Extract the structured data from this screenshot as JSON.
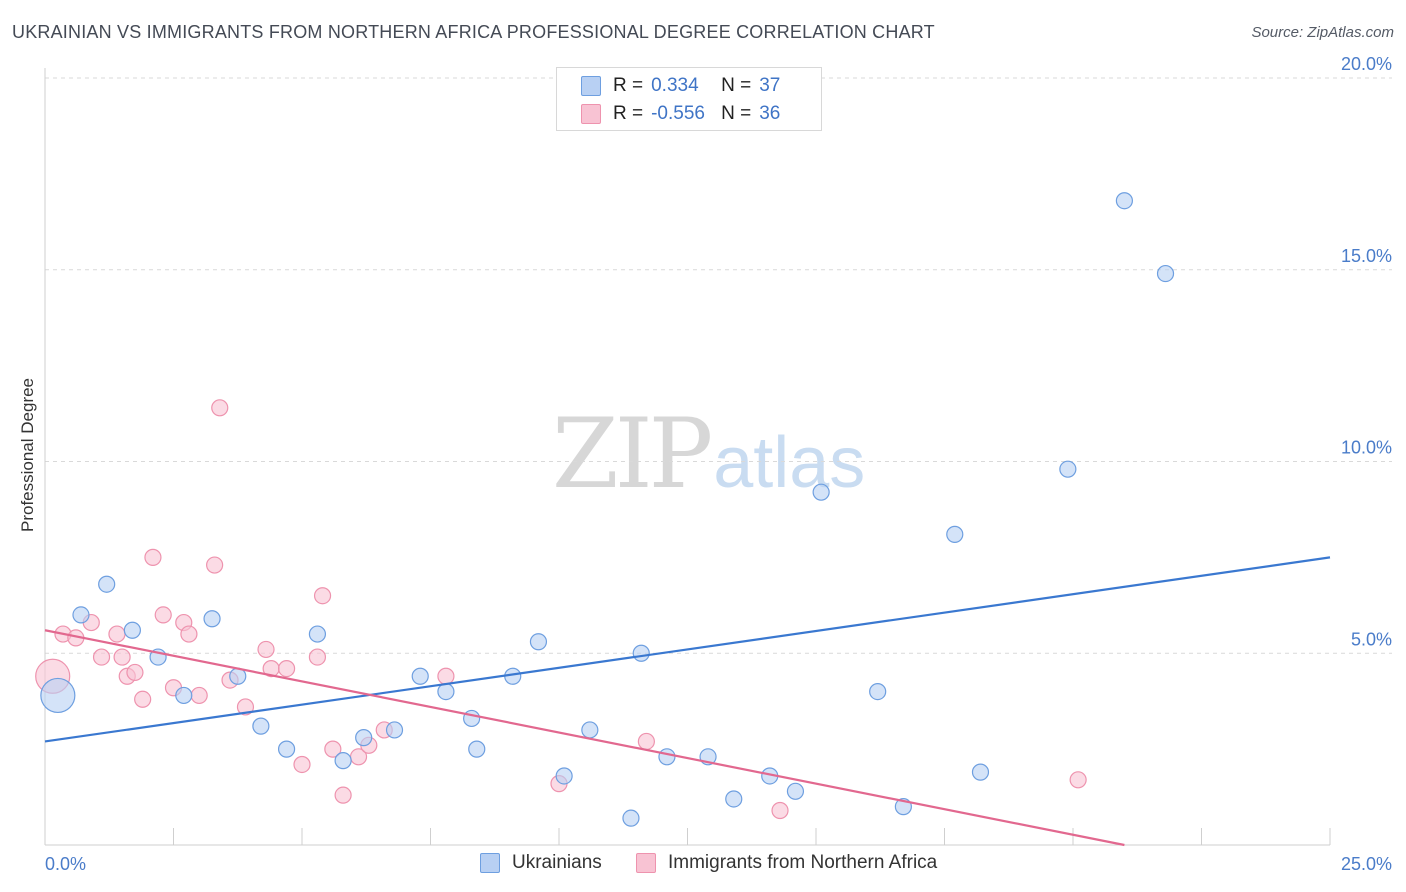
{
  "title": "UKRAINIAN VS IMMIGRANTS FROM NORTHERN AFRICA PROFESSIONAL DEGREE CORRELATION CHART",
  "source": "Source: ZipAtlas.com",
  "watermark": {
    "zip": "ZIP",
    "atlas": "atlas"
  },
  "legend": {
    "series1": {
      "r_label": "R =",
      "r_value": "0.334",
      "n_label": "N =",
      "n_value": "37"
    },
    "series2": {
      "r_label": "R =",
      "r_value": "-0.556",
      "n_label": "N =",
      "n_value": "36"
    }
  },
  "bottom_legend": {
    "series1": "Ukrainians",
    "series2": "Immigrants from Northern Africa"
  },
  "colors": {
    "blue_fill": "#b8d0f3",
    "blue_stroke": "#6e9fe0",
    "blue_line": "#3a78d0",
    "pink_fill": "#f8c3d3",
    "pink_stroke": "#ee93ae",
    "pink_line": "#e2688f",
    "tick_text": "#4a7cc9",
    "grid": "#d9d9d9"
  },
  "chart_data": {
    "type": "scatter",
    "title": "UKRAINIAN VS IMMIGRANTS FROM NORTHERN AFRICA PROFESSIONAL DEGREE CORRELATION CHART",
    "xlabel": "",
    "ylabel": "Professional Degree",
    "xlim": [
      0,
      25
    ],
    "ylim": [
      0,
      20
    ],
    "x_ticks": [
      "0.0%",
      "25.0%"
    ],
    "y_ticks": [
      {
        "value": 5,
        "label": "5.0%"
      },
      {
        "value": 10,
        "label": "10.0%"
      },
      {
        "value": 15,
        "label": "15.0%"
      },
      {
        "value": 20,
        "label": "20.0%"
      }
    ],
    "grid": "horizontal dashed",
    "series": [
      {
        "name": "Ukrainians",
        "color": "#b8d0f3",
        "points": [
          {
            "x": 0.25,
            "y": 3.9,
            "big": true
          },
          {
            "x": 0.7,
            "y": 6.0
          },
          {
            "x": 1.2,
            "y": 6.8
          },
          {
            "x": 1.7,
            "y": 5.6
          },
          {
            "x": 2.2,
            "y": 4.9
          },
          {
            "x": 2.7,
            "y": 3.9
          },
          {
            "x": 3.25,
            "y": 5.9
          },
          {
            "x": 3.75,
            "y": 4.4
          },
          {
            "x": 4.2,
            "y": 3.1
          },
          {
            "x": 4.7,
            "y": 2.5
          },
          {
            "x": 5.3,
            "y": 5.5
          },
          {
            "x": 5.8,
            "y": 2.2
          },
          {
            "x": 6.2,
            "y": 2.8
          },
          {
            "x": 6.8,
            "y": 3.0
          },
          {
            "x": 7.3,
            "y": 4.4
          },
          {
            "x": 7.8,
            "y": 4.0
          },
          {
            "x": 8.3,
            "y": 3.3
          },
          {
            "x": 8.4,
            "y": 2.5
          },
          {
            "x": 9.1,
            "y": 4.4
          },
          {
            "x": 9.6,
            "y": 5.3
          },
          {
            "x": 10.1,
            "y": 1.8
          },
          {
            "x": 10.6,
            "y": 3.0
          },
          {
            "x": 11.4,
            "y": 0.7
          },
          {
            "x": 11.6,
            "y": 5.0
          },
          {
            "x": 12.1,
            "y": 2.3
          },
          {
            "x": 12.9,
            "y": 2.3
          },
          {
            "x": 13.4,
            "y": 1.2
          },
          {
            "x": 14.1,
            "y": 1.8
          },
          {
            "x": 14.6,
            "y": 1.4
          },
          {
            "x": 15.1,
            "y": 9.2
          },
          {
            "x": 16.2,
            "y": 4.0
          },
          {
            "x": 16.7,
            "y": 1.0
          },
          {
            "x": 17.7,
            "y": 8.1
          },
          {
            "x": 18.2,
            "y": 1.9
          },
          {
            "x": 19.9,
            "y": 9.8
          },
          {
            "x": 21.0,
            "y": 16.8
          },
          {
            "x": 21.8,
            "y": 14.9
          }
        ],
        "trend": {
          "x": [
            0,
            25
          ],
          "y": [
            2.7,
            7.5
          ]
        }
      },
      {
        "name": "Immigrants from Northern Africa",
        "color": "#f8c3d3",
        "points": [
          {
            "x": 0.15,
            "y": 4.4,
            "big": true
          },
          {
            "x": 0.35,
            "y": 5.5
          },
          {
            "x": 0.6,
            "y": 5.4
          },
          {
            "x": 0.9,
            "y": 5.8
          },
          {
            "x": 1.1,
            "y": 4.9
          },
          {
            "x": 1.4,
            "y": 5.5
          },
          {
            "x": 1.5,
            "y": 4.9
          },
          {
            "x": 1.6,
            "y": 4.4
          },
          {
            "x": 1.75,
            "y": 4.5
          },
          {
            "x": 1.9,
            "y": 3.8
          },
          {
            "x": 2.1,
            "y": 7.5
          },
          {
            "x": 2.3,
            "y": 6.0
          },
          {
            "x": 2.5,
            "y": 4.1
          },
          {
            "x": 2.7,
            "y": 5.8
          },
          {
            "x": 2.8,
            "y": 5.5
          },
          {
            "x": 3.0,
            "y": 3.9
          },
          {
            "x": 3.3,
            "y": 7.3
          },
          {
            "x": 3.4,
            "y": 11.4
          },
          {
            "x": 3.6,
            "y": 4.3
          },
          {
            "x": 3.9,
            "y": 3.6
          },
          {
            "x": 4.3,
            "y": 5.1
          },
          {
            "x": 4.4,
            "y": 4.6
          },
          {
            "x": 4.7,
            "y": 4.6
          },
          {
            "x": 5.0,
            "y": 2.1
          },
          {
            "x": 5.3,
            "y": 4.9
          },
          {
            "x": 5.4,
            "y": 6.5
          },
          {
            "x": 5.6,
            "y": 2.5
          },
          {
            "x": 5.8,
            "y": 1.3
          },
          {
            "x": 6.1,
            "y": 2.3
          },
          {
            "x": 6.3,
            "y": 2.6
          },
          {
            "x": 6.6,
            "y": 3.0
          },
          {
            "x": 7.8,
            "y": 4.4
          },
          {
            "x": 10.0,
            "y": 1.6
          },
          {
            "x": 11.7,
            "y": 2.7
          },
          {
            "x": 14.3,
            "y": 0.9
          },
          {
            "x": 20.1,
            "y": 1.7
          }
        ],
        "trend": {
          "x": [
            0,
            21
          ],
          "y": [
            5.6,
            0
          ]
        }
      }
    ]
  }
}
